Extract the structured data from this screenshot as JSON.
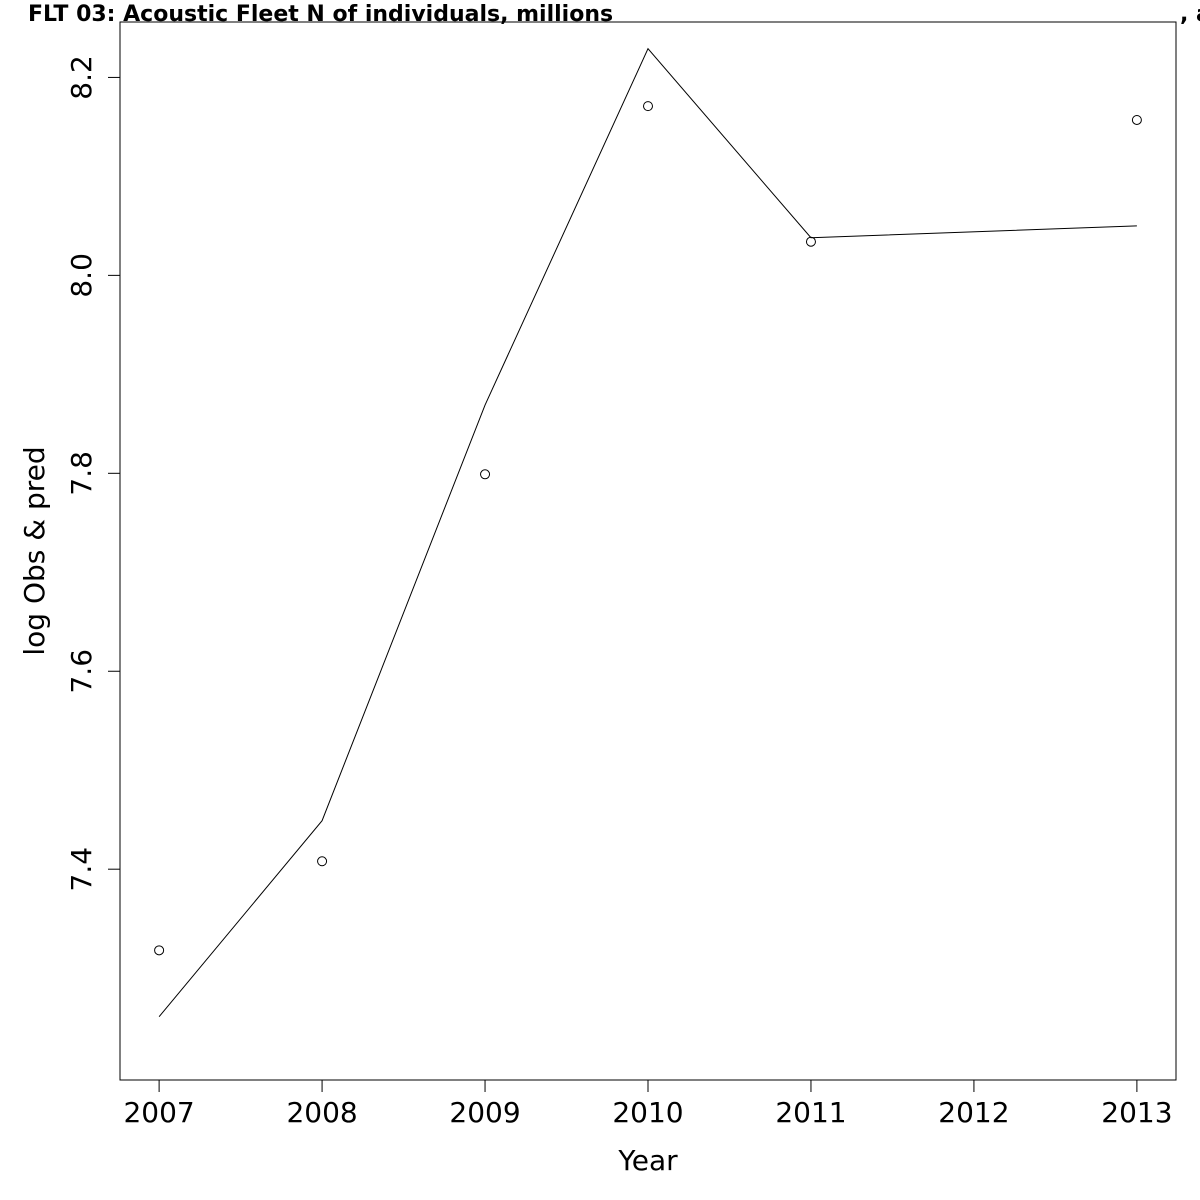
{
  "chart_data": {
    "type": "line",
    "title": "FLT 03: Acoustic Fleet   N of individuals, millions",
    "title_suffix": ", a",
    "xlabel": "Year",
    "ylabel": "log Obs & pred",
    "x_ticks": [
      "2007",
      "2008",
      "2009",
      "2010",
      "2011",
      "2012",
      "2013"
    ],
    "y_ticks": [
      "7.4",
      "7.6",
      "7.8",
      "8.0",
      "8.2"
    ],
    "xlim": [
      2006.76,
      2013.24
    ],
    "ylim": [
      7.187,
      8.256
    ],
    "grid": false,
    "series": [
      {
        "style": "points",
        "x": [
          2007,
          2008,
          2009,
          2010,
          2011,
          2013
        ],
        "y": [
          7.318,
          7.408,
          7.799,
          8.171,
          8.034,
          8.157
        ]
      },
      {
        "style": "line",
        "x": [
          2007,
          2008,
          2009,
          2010,
          2011,
          2013
        ],
        "y": [
          7.251,
          7.449,
          7.869,
          8.229,
          8.038,
          8.05
        ]
      }
    ]
  }
}
